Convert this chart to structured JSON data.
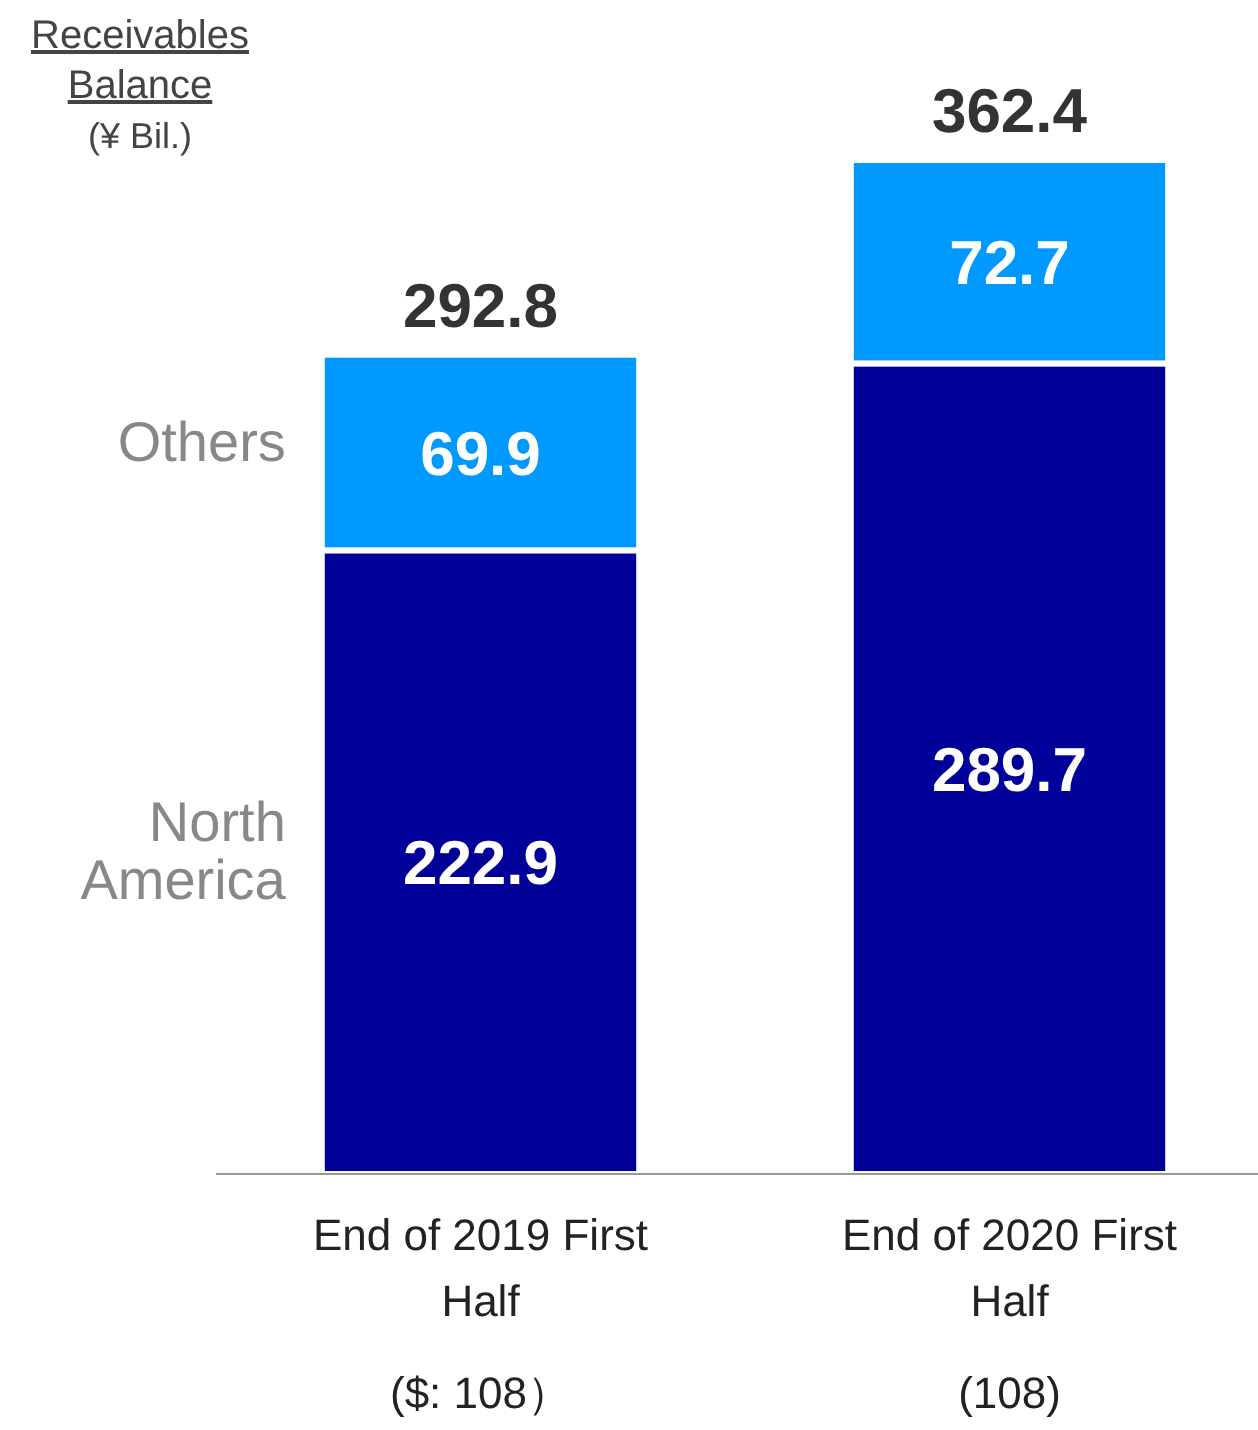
{
  "chart_data": {
    "type": "bar",
    "title": "Receivables Balance",
    "subtitle": "(¥ Bil.)",
    "stacked": true,
    "data_labels": true,
    "categories": [
      "End of 2019 First Half",
      "End of 2020 First Half"
    ],
    "series": [
      {
        "name": "North America",
        "color": "#000099",
        "values": [
          222.9,
          289.7
        ]
      },
      {
        "name": "Others",
        "color": "#0099ff",
        "values": [
          69.9,
          72.7
        ]
      }
    ],
    "totals": [
      "292.8",
      "362.4"
    ],
    "annotations": [
      "($: 108）",
      "(108)"
    ]
  }
}
